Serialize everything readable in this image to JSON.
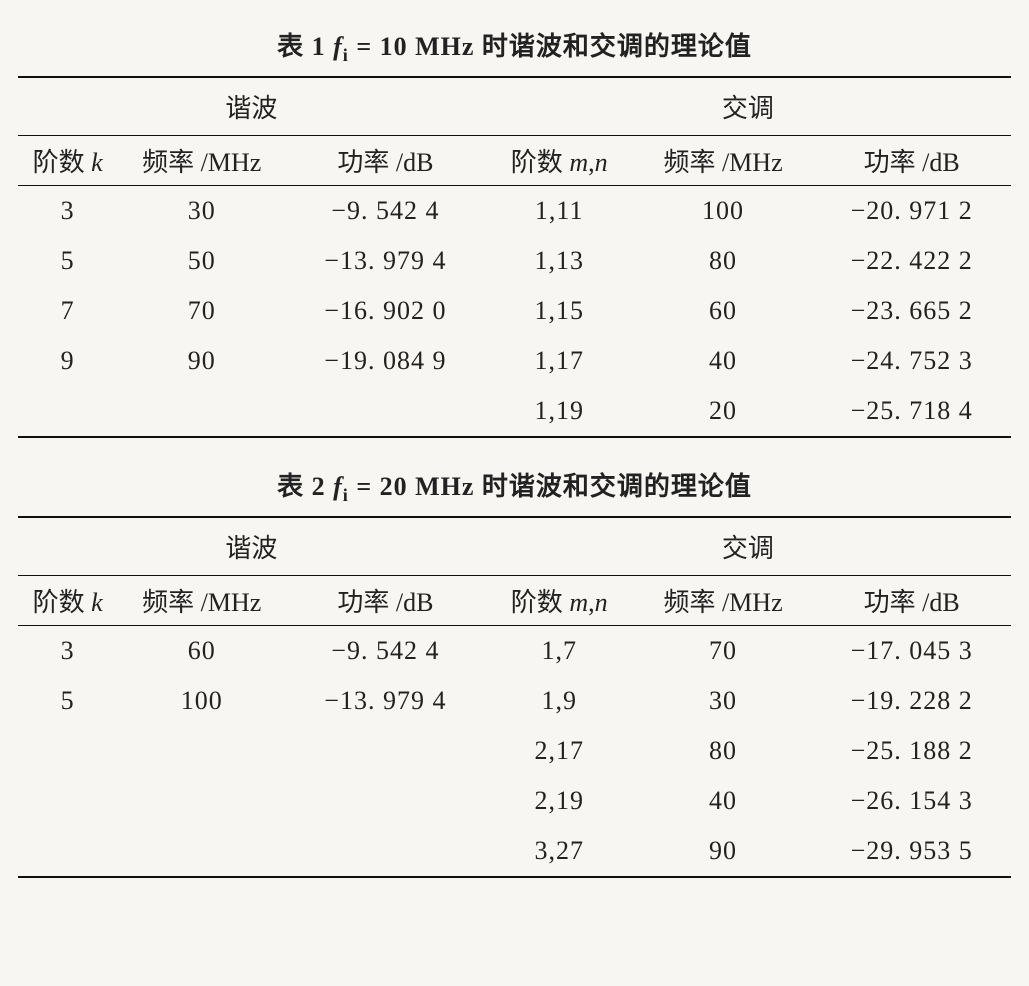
{
  "table1": {
    "caption_prefix": "表 1   ",
    "caption_var": "f",
    "caption_sub": "i",
    "caption_eq": " = 10 MHz 时谐波和交调的理论值",
    "group_left": "谐波",
    "group_right": "交调",
    "headers": {
      "k": "阶数 k",
      "freq_h": "频率 /MHz",
      "pow_h": "功率 /dB",
      "mn": "阶数 m,n",
      "freq_i": "频率 /MHz",
      "pow_i": "功率 /dB"
    },
    "rows": [
      {
        "k": "3",
        "fh": "30",
        "ph": "−9. 542 4",
        "mn": "1,11",
        "fi": "100",
        "pi": "−20. 971 2"
      },
      {
        "k": "5",
        "fh": "50",
        "ph": "−13. 979 4",
        "mn": "1,13",
        "fi": "80",
        "pi": "−22. 422 2"
      },
      {
        "k": "7",
        "fh": "70",
        "ph": "−16. 902 0",
        "mn": "1,15",
        "fi": "60",
        "pi": "−23. 665 2"
      },
      {
        "k": "9",
        "fh": "90",
        "ph": "−19. 084 9",
        "mn": "1,17",
        "fi": "40",
        "pi": "−24. 752 3"
      },
      {
        "k": "",
        "fh": "",
        "ph": "",
        "mn": "1,19",
        "fi": "20",
        "pi": "−25. 718 4"
      }
    ]
  },
  "table2": {
    "caption_prefix": "表 2   ",
    "caption_var": "f",
    "caption_sub": "i",
    "caption_eq": " = 20 MHz 时谐波和交调的理论值",
    "group_left": "谐波",
    "group_right": "交调",
    "headers": {
      "k": "阶数 k",
      "freq_h": "频率 /MHz",
      "pow_h": "功率 /dB",
      "mn": "阶数 m,n",
      "freq_i": "频率 /MHz",
      "pow_i": "功率 /dB"
    },
    "rows": [
      {
        "k": "3",
        "fh": "60",
        "ph": "−9. 542 4",
        "mn": "1,7",
        "fi": "70",
        "pi": "−17. 045 3"
      },
      {
        "k": "5",
        "fh": "100",
        "ph": "−13. 979 4",
        "mn": "1,9",
        "fi": "30",
        "pi": "−19. 228 2"
      },
      {
        "k": "",
        "fh": "",
        "ph": "",
        "mn": "2,17",
        "fi": "80",
        "pi": "−25. 188 2"
      },
      {
        "k": "",
        "fh": "",
        "ph": "",
        "mn": "2,19",
        "fi": "40",
        "pi": "−26. 154 3"
      },
      {
        "k": "",
        "fh": "",
        "ph": "",
        "mn": "3,27",
        "fi": "90",
        "pi": "−29. 953 5"
      }
    ]
  },
  "style": {
    "background_color": "#f7f6f2",
    "text_color": "#222222",
    "rule_color": "#111111",
    "caption_fontsize_pt": 20,
    "body_fontsize_pt": 20,
    "font_family": "SimSun / Times New Roman"
  }
}
